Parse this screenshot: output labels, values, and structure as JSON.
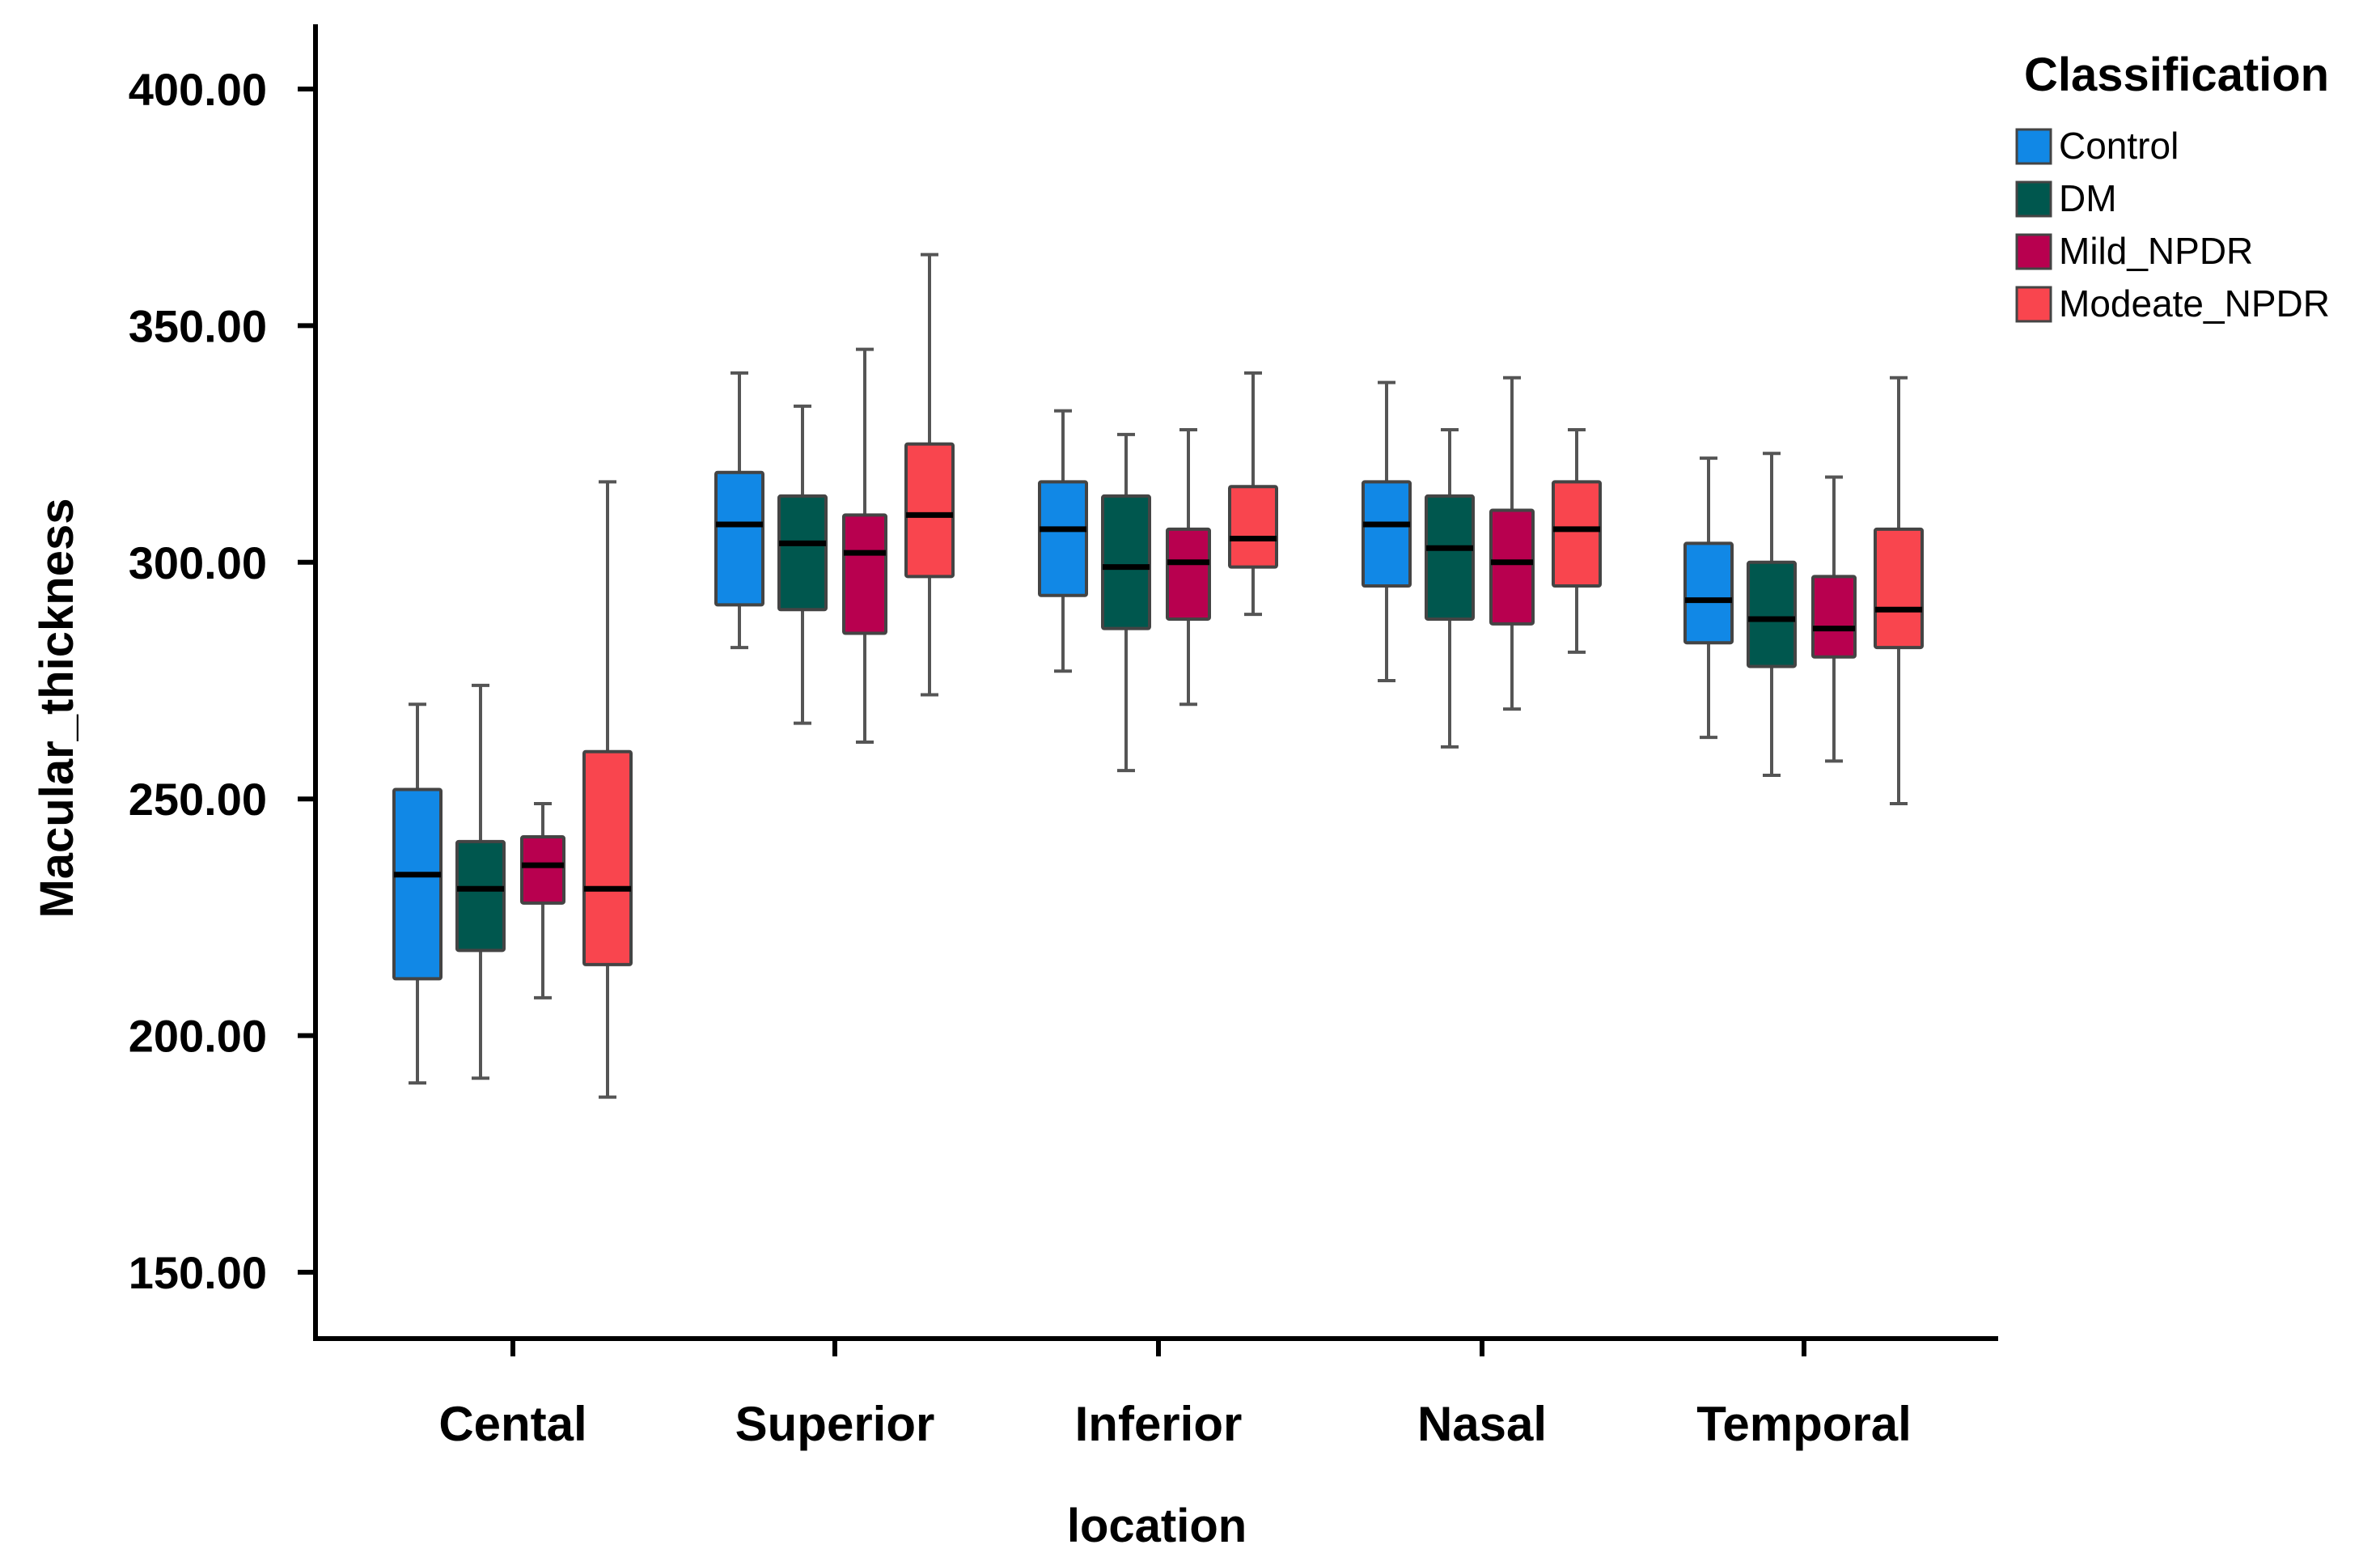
{
  "chart_data": {
    "type": "boxplot",
    "xlabel": "location",
    "ylabel": "Macular_thickness",
    "ylim": [
      135,
      405
    ],
    "yticks": [
      150,
      200,
      250,
      300,
      350,
      400
    ],
    "ytick_labels": [
      "150.00",
      "200.00",
      "250.00",
      "300.00",
      "350.00",
      "400.00"
    ],
    "categories": [
      "Cental",
      "Superior",
      "Inferior",
      "Nasal",
      "Temporal"
    ],
    "legend": {
      "title": "Classification",
      "position": "top-right"
    },
    "grid": false,
    "series": [
      {
        "name": "Control",
        "color": "#1188e6",
        "boxes": [
          {
            "min": 190,
            "q1": 212,
            "median": 234,
            "q3": 252,
            "max": 270
          },
          {
            "min": 282,
            "q1": 291,
            "median": 308,
            "q3": 319,
            "max": 340
          },
          {
            "min": 277,
            "q1": 293,
            "median": 307,
            "q3": 317,
            "max": 332
          },
          {
            "min": 275,
            "q1": 295,
            "median": 308,
            "q3": 317,
            "max": 338
          },
          {
            "min": 263,
            "q1": 283,
            "median": 292,
            "q3": 304,
            "max": 322
          }
        ]
      },
      {
        "name": "DM",
        "color": "#00574e",
        "boxes": [
          {
            "min": 191,
            "q1": 218,
            "median": 231,
            "q3": 241,
            "max": 274
          },
          {
            "min": 266,
            "q1": 290,
            "median": 304,
            "q3": 314,
            "max": 333
          },
          {
            "min": 256,
            "q1": 286,
            "median": 299,
            "q3": 314,
            "max": 327
          },
          {
            "min": 261,
            "q1": 288,
            "median": 303,
            "q3": 314,
            "max": 328
          },
          {
            "min": 255,
            "q1": 278,
            "median": 288,
            "q3": 300,
            "max": 323
          }
        ]
      },
      {
        "name": "Mild_NPDR",
        "color": "#b8004f",
        "boxes": [
          {
            "min": 208,
            "q1": 228,
            "median": 236,
            "q3": 242,
            "max": 249
          },
          {
            "min": 262,
            "q1": 285,
            "median": 302,
            "q3": 310,
            "max": 345
          },
          {
            "min": 270,
            "q1": 288,
            "median": 300,
            "q3": 307,
            "max": 328
          },
          {
            "min": 269,
            "q1": 287,
            "median": 300,
            "q3": 311,
            "max": 339
          },
          {
            "min": 258,
            "q1": 280,
            "median": 286,
            "q3": 297,
            "max": 318
          }
        ]
      },
      {
        "name": "Modeate_NPDR",
        "color": "#f9454e",
        "boxes": [
          {
            "min": 187,
            "q1": 215,
            "median": 231,
            "q3": 260,
            "max": 317
          },
          {
            "min": 272,
            "q1": 297,
            "median": 310,
            "q3": 325,
            "max": 365
          },
          {
            "min": 289,
            "q1": 299,
            "median": 305,
            "q3": 316,
            "max": 340
          },
          {
            "min": 281,
            "q1": 295,
            "median": 307,
            "q3": 317,
            "max": 328
          },
          {
            "min": 249,
            "q1": 282,
            "median": 290,
            "q3": 307,
            "max": 339
          }
        ]
      }
    ]
  }
}
